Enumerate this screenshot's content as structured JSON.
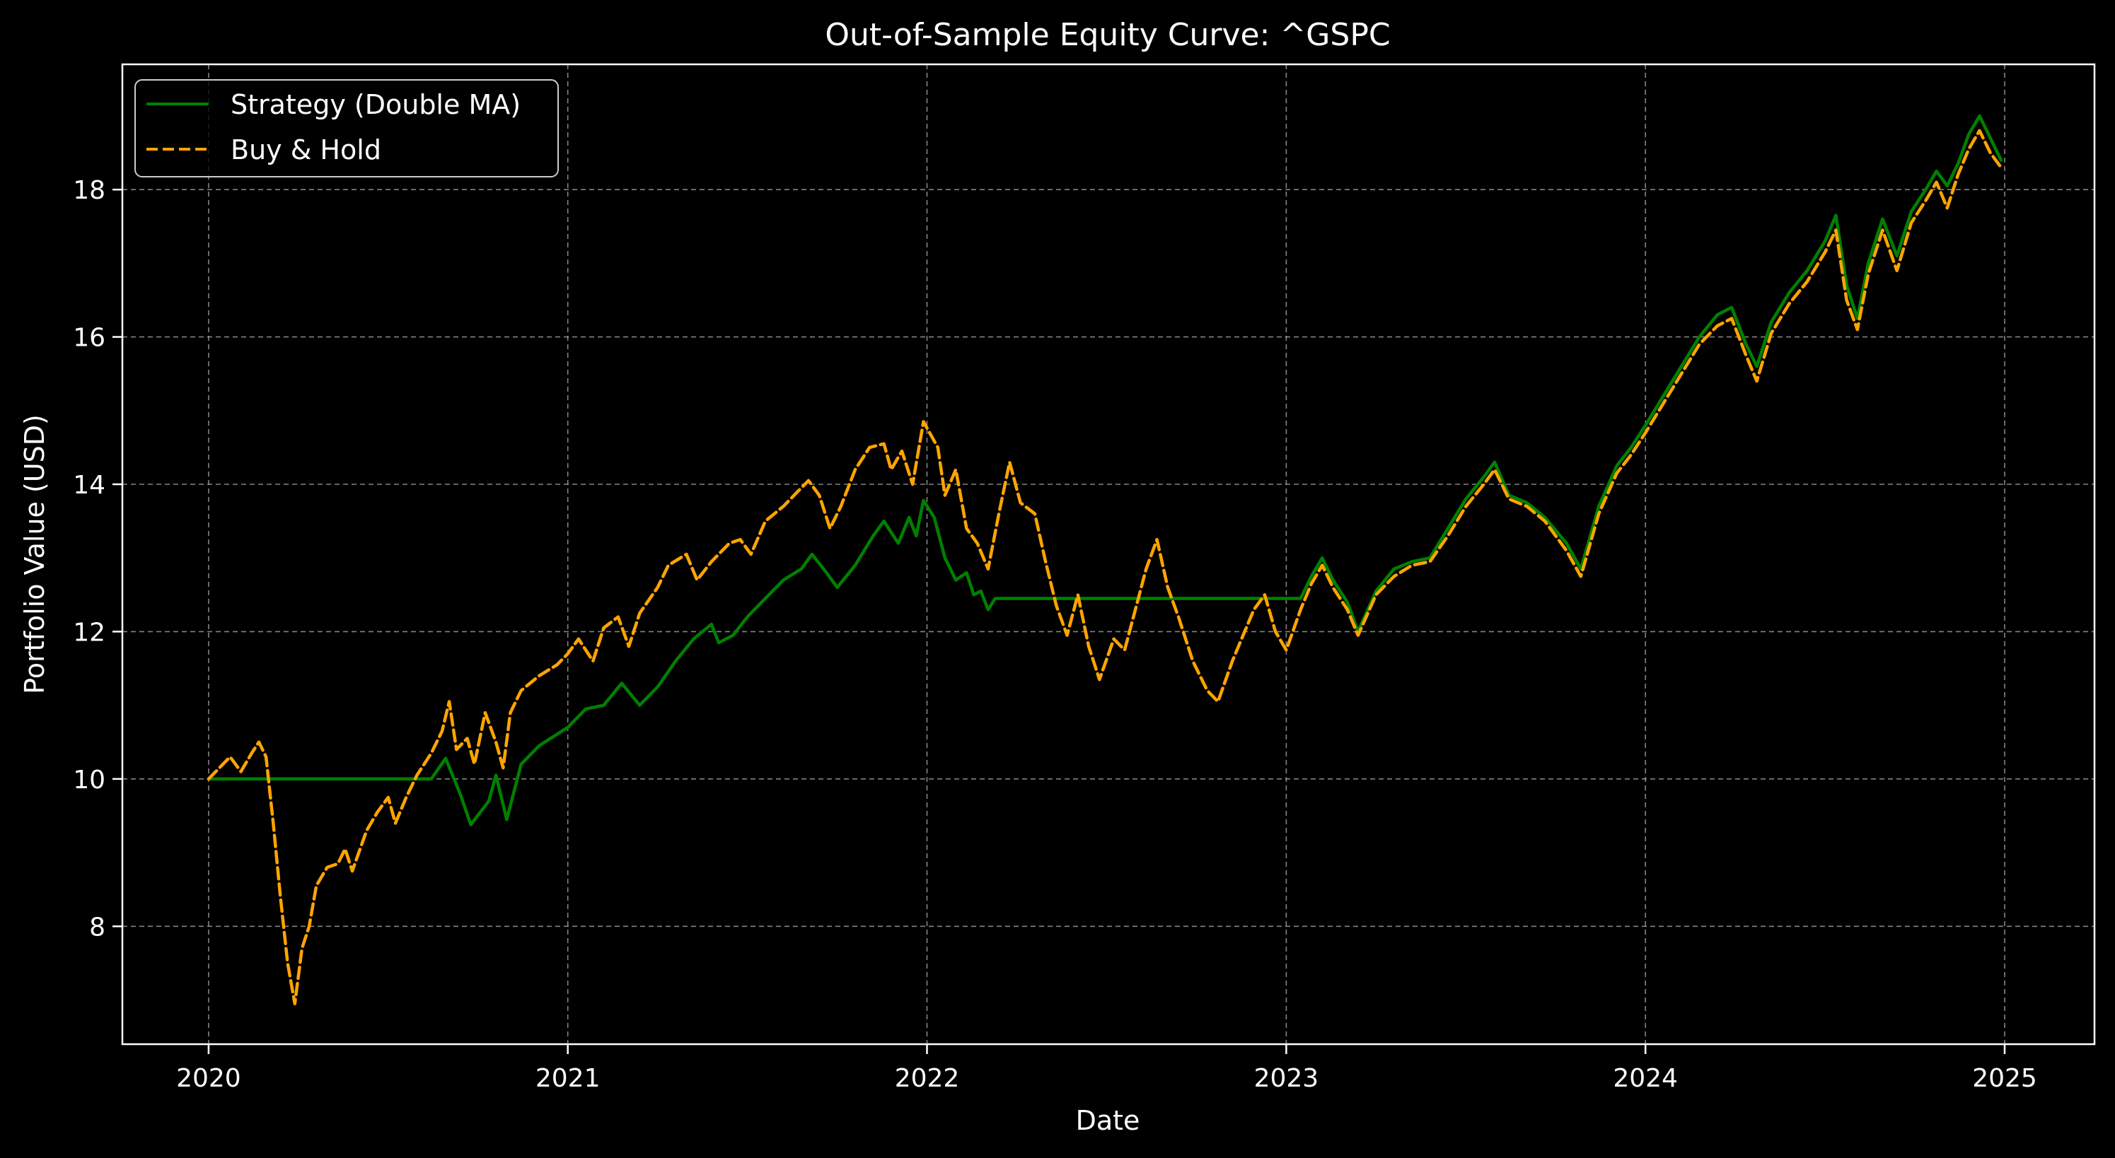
{
  "chart_data": {
    "type": "line",
    "title": "Out-of-Sample Equity Curve: ^GSPC",
    "xlabel": "Date",
    "ylabel": "Portfolio Value (USD)",
    "xlim": [
      2019.76,
      2025.25
    ],
    "ylim": [
      6.4,
      19.7
    ],
    "xticks": [
      2020,
      2021,
      2022,
      2023,
      2024,
      2025
    ],
    "xtick_labels": [
      "2020",
      "2021",
      "2022",
      "2023",
      "2024",
      "2025"
    ],
    "yticks": [
      8,
      10,
      12,
      14,
      16,
      18
    ],
    "ytick_labels": [
      "8",
      "10",
      "12",
      "14",
      "16",
      "18"
    ],
    "grid": true,
    "legend_position": "top-left",
    "series": [
      {
        "name": "Strategy (Double MA)",
        "color": "#008000",
        "dash": "solid",
        "points": [
          [
            2020.0,
            10.0
          ],
          [
            2020.62,
            10.0
          ],
          [
            2020.66,
            10.28
          ],
          [
            2020.7,
            9.8
          ],
          [
            2020.73,
            9.38
          ],
          [
            2020.78,
            9.7
          ],
          [
            2020.8,
            10.05
          ],
          [
            2020.83,
            9.45
          ],
          [
            2020.87,
            10.2
          ],
          [
            2020.92,
            10.45
          ],
          [
            2021.0,
            10.7
          ],
          [
            2021.05,
            10.95
          ],
          [
            2021.1,
            11.0
          ],
          [
            2021.15,
            11.3
          ],
          [
            2021.2,
            11.0
          ],
          [
            2021.25,
            11.25
          ],
          [
            2021.3,
            11.6
          ],
          [
            2021.35,
            11.9
          ],
          [
            2021.4,
            12.1
          ],
          [
            2021.42,
            11.85
          ],
          [
            2021.46,
            11.95
          ],
          [
            2021.5,
            12.2
          ],
          [
            2021.55,
            12.45
          ],
          [
            2021.6,
            12.7
          ],
          [
            2021.65,
            12.85
          ],
          [
            2021.68,
            13.05
          ],
          [
            2021.72,
            12.8
          ],
          [
            2021.75,
            12.6
          ],
          [
            2021.8,
            12.9
          ],
          [
            2021.85,
            13.3
          ],
          [
            2021.88,
            13.5
          ],
          [
            2021.92,
            13.2
          ],
          [
            2021.95,
            13.55
          ],
          [
            2021.97,
            13.3
          ],
          [
            2021.99,
            13.78
          ],
          [
            2022.02,
            13.55
          ],
          [
            2022.05,
            13.0
          ],
          [
            2022.08,
            12.7
          ],
          [
            2022.11,
            12.8
          ],
          [
            2022.13,
            12.5
          ],
          [
            2022.15,
            12.55
          ],
          [
            2022.17,
            12.3
          ],
          [
            2022.19,
            12.45
          ],
          [
            2023.04,
            12.45
          ],
          [
            2023.07,
            12.75
          ],
          [
            2023.1,
            13.0
          ],
          [
            2023.13,
            12.7
          ],
          [
            2023.17,
            12.4
          ],
          [
            2023.2,
            12.0
          ],
          [
            2023.25,
            12.55
          ],
          [
            2023.3,
            12.85
          ],
          [
            2023.35,
            12.95
          ],
          [
            2023.4,
            13.0
          ],
          [
            2023.45,
            13.4
          ],
          [
            2023.5,
            13.8
          ],
          [
            2023.55,
            14.1
          ],
          [
            2023.58,
            14.3
          ],
          [
            2023.62,
            13.85
          ],
          [
            2023.67,
            13.75
          ],
          [
            2023.72,
            13.55
          ],
          [
            2023.78,
            13.2
          ],
          [
            2023.82,
            12.85
          ],
          [
            2023.87,
            13.7
          ],
          [
            2023.92,
            14.25
          ],
          [
            2023.96,
            14.5
          ],
          [
            2024.0,
            14.8
          ],
          [
            2024.05,
            15.2
          ],
          [
            2024.1,
            15.6
          ],
          [
            2024.15,
            16.0
          ],
          [
            2024.2,
            16.3
          ],
          [
            2024.24,
            16.4
          ],
          [
            2024.28,
            15.9
          ],
          [
            2024.31,
            15.6
          ],
          [
            2024.35,
            16.2
          ],
          [
            2024.4,
            16.6
          ],
          [
            2024.45,
            16.9
          ],
          [
            2024.5,
            17.3
          ],
          [
            2024.53,
            17.65
          ],
          [
            2024.56,
            16.7
          ],
          [
            2024.59,
            16.25
          ],
          [
            2024.62,
            17.0
          ],
          [
            2024.66,
            17.6
          ],
          [
            2024.7,
            17.1
          ],
          [
            2024.74,
            17.7
          ],
          [
            2024.78,
            18.0
          ],
          [
            2024.81,
            18.25
          ],
          [
            2024.84,
            18.05
          ],
          [
            2024.87,
            18.35
          ],
          [
            2024.9,
            18.75
          ],
          [
            2024.93,
            19.0
          ],
          [
            2024.96,
            18.7
          ],
          [
            2024.99,
            18.4
          ]
        ]
      },
      {
        "name": "Buy & Hold",
        "color": "#FFA500",
        "dash": "dashed",
        "points": [
          [
            2020.0,
            10.0
          ],
          [
            2020.03,
            10.15
          ],
          [
            2020.06,
            10.3
          ],
          [
            2020.09,
            10.1
          ],
          [
            2020.12,
            10.35
          ],
          [
            2020.14,
            10.5
          ],
          [
            2020.16,
            10.3
          ],
          [
            2020.18,
            9.4
          ],
          [
            2020.2,
            8.4
          ],
          [
            2020.22,
            7.5
          ],
          [
            2020.24,
            6.95
          ],
          [
            2020.26,
            7.7
          ],
          [
            2020.28,
            8.0
          ],
          [
            2020.3,
            8.55
          ],
          [
            2020.33,
            8.8
          ],
          [
            2020.36,
            8.85
          ],
          [
            2020.38,
            9.05
          ],
          [
            2020.4,
            8.75
          ],
          [
            2020.44,
            9.3
          ],
          [
            2020.47,
            9.55
          ],
          [
            2020.5,
            9.75
          ],
          [
            2020.52,
            9.4
          ],
          [
            2020.55,
            9.75
          ],
          [
            2020.58,
            10.05
          ],
          [
            2020.62,
            10.35
          ],
          [
            2020.65,
            10.65
          ],
          [
            2020.67,
            11.05
          ],
          [
            2020.69,
            10.4
          ],
          [
            2020.72,
            10.55
          ],
          [
            2020.74,
            10.2
          ],
          [
            2020.77,
            10.9
          ],
          [
            2020.8,
            10.5
          ],
          [
            2020.82,
            10.15
          ],
          [
            2020.84,
            10.9
          ],
          [
            2020.87,
            11.2
          ],
          [
            2020.92,
            11.4
          ],
          [
            2020.97,
            11.55
          ],
          [
            2021.0,
            11.7
          ],
          [
            2021.03,
            11.9
          ],
          [
            2021.07,
            11.6
          ],
          [
            2021.1,
            12.05
          ],
          [
            2021.14,
            12.2
          ],
          [
            2021.17,
            11.8
          ],
          [
            2021.2,
            12.25
          ],
          [
            2021.25,
            12.6
          ],
          [
            2021.28,
            12.9
          ],
          [
            2021.33,
            13.05
          ],
          [
            2021.36,
            12.7
          ],
          [
            2021.4,
            12.95
          ],
          [
            2021.45,
            13.2
          ],
          [
            2021.48,
            13.25
          ],
          [
            2021.51,
            13.05
          ],
          [
            2021.55,
            13.5
          ],
          [
            2021.6,
            13.7
          ],
          [
            2021.63,
            13.85
          ],
          [
            2021.67,
            14.05
          ],
          [
            2021.7,
            13.85
          ],
          [
            2021.73,
            13.4
          ],
          [
            2021.76,
            13.7
          ],
          [
            2021.8,
            14.2
          ],
          [
            2021.84,
            14.5
          ],
          [
            2021.88,
            14.55
          ],
          [
            2021.9,
            14.2
          ],
          [
            2021.93,
            14.45
          ],
          [
            2021.96,
            14.0
          ],
          [
            2021.99,
            14.85
          ],
          [
            2022.03,
            14.5
          ],
          [
            2022.05,
            13.85
          ],
          [
            2022.08,
            14.2
          ],
          [
            2022.11,
            13.4
          ],
          [
            2022.14,
            13.2
          ],
          [
            2022.17,
            12.85
          ],
          [
            2022.2,
            13.6
          ],
          [
            2022.23,
            14.3
          ],
          [
            2022.26,
            13.75
          ],
          [
            2022.3,
            13.6
          ],
          [
            2022.33,
            12.95
          ],
          [
            2022.36,
            12.35
          ],
          [
            2022.39,
            11.95
          ],
          [
            2022.42,
            12.5
          ],
          [
            2022.45,
            11.8
          ],
          [
            2022.48,
            11.35
          ],
          [
            2022.52,
            11.9
          ],
          [
            2022.55,
            11.75
          ],
          [
            2022.58,
            12.3
          ],
          [
            2022.61,
            12.85
          ],
          [
            2022.64,
            13.25
          ],
          [
            2022.67,
            12.6
          ],
          [
            2022.7,
            12.2
          ],
          [
            2022.74,
            11.6
          ],
          [
            2022.78,
            11.2
          ],
          [
            2022.81,
            11.05
          ],
          [
            2022.85,
            11.6
          ],
          [
            2022.88,
            11.95
          ],
          [
            2022.91,
            12.3
          ],
          [
            2022.94,
            12.5
          ],
          [
            2022.97,
            12.0
          ],
          [
            2023.0,
            11.75
          ],
          [
            2023.04,
            12.3
          ],
          [
            2023.07,
            12.65
          ],
          [
            2023.1,
            12.9
          ],
          [
            2023.13,
            12.6
          ],
          [
            2023.17,
            12.3
          ],
          [
            2023.2,
            11.95
          ],
          [
            2023.25,
            12.5
          ],
          [
            2023.3,
            12.75
          ],
          [
            2023.35,
            12.9
          ],
          [
            2023.4,
            12.95
          ],
          [
            2023.45,
            13.3
          ],
          [
            2023.5,
            13.7
          ],
          [
            2023.55,
            14.0
          ],
          [
            2023.58,
            14.2
          ],
          [
            2023.62,
            13.8
          ],
          [
            2023.67,
            13.7
          ],
          [
            2023.72,
            13.5
          ],
          [
            2023.78,
            13.1
          ],
          [
            2023.82,
            12.75
          ],
          [
            2023.87,
            13.6
          ],
          [
            2023.92,
            14.15
          ],
          [
            2023.96,
            14.4
          ],
          [
            2024.0,
            14.7
          ],
          [
            2024.05,
            15.1
          ],
          [
            2024.1,
            15.5
          ],
          [
            2024.15,
            15.9
          ],
          [
            2024.2,
            16.15
          ],
          [
            2024.24,
            16.25
          ],
          [
            2024.28,
            15.75
          ],
          [
            2024.31,
            15.4
          ],
          [
            2024.35,
            16.05
          ],
          [
            2024.4,
            16.45
          ],
          [
            2024.45,
            16.75
          ],
          [
            2024.5,
            17.15
          ],
          [
            2024.53,
            17.45
          ],
          [
            2024.56,
            16.5
          ],
          [
            2024.59,
            16.1
          ],
          [
            2024.62,
            16.85
          ],
          [
            2024.66,
            17.45
          ],
          [
            2024.7,
            16.9
          ],
          [
            2024.74,
            17.55
          ],
          [
            2024.78,
            17.85
          ],
          [
            2024.81,
            18.1
          ],
          [
            2024.84,
            17.75
          ],
          [
            2024.87,
            18.2
          ],
          [
            2024.9,
            18.55
          ],
          [
            2024.93,
            18.8
          ],
          [
            2024.96,
            18.5
          ],
          [
            2024.99,
            18.3
          ]
        ]
      }
    ]
  }
}
